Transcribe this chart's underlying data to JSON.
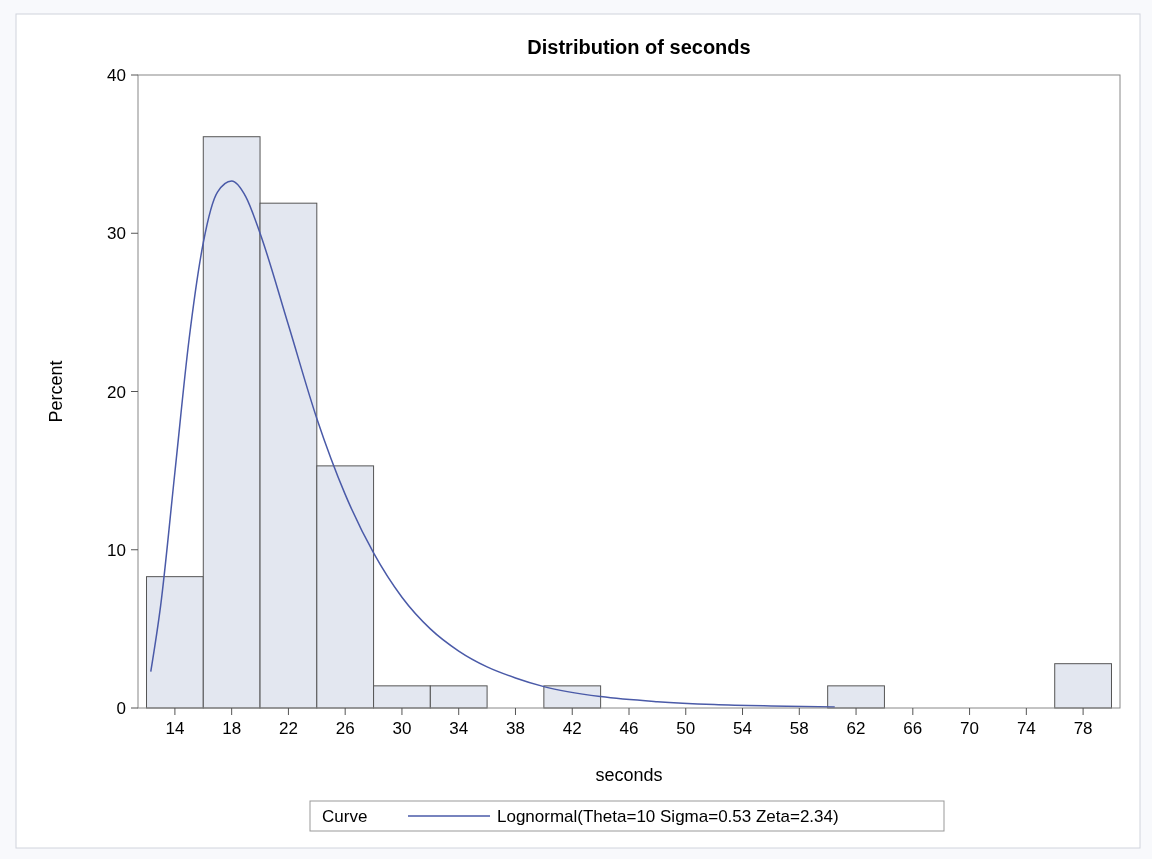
{
  "chart_data": {
    "type": "histogram",
    "title": "Distribution of seconds",
    "xlabel": "seconds",
    "ylabel": "Percent",
    "legend_title": "Curve",
    "legend": "bottom",
    "xlim": [
      11.4,
      80.6
    ],
    "xticks": [
      14,
      18,
      22,
      26,
      30,
      34,
      38,
      42,
      46,
      50,
      54,
      58,
      62,
      66,
      70,
      74,
      78
    ],
    "ylim": [
      0,
      40
    ],
    "yticks": [
      0,
      10,
      20,
      30,
      40
    ],
    "series": [
      {
        "color": "#e3e7f0",
        "bins": [
          12,
          16,
          20,
          24,
          28,
          32,
          36,
          40,
          44,
          48,
          52,
          56,
          60,
          64,
          68,
          72,
          76,
          80
        ],
        "values": [
          8.3,
          36.1,
          31.9,
          15.3,
          1.4,
          1.4,
          0,
          1.4,
          0,
          0,
          0,
          0,
          1.4,
          0,
          0,
          0,
          2.8
        ]
      },
      {
        "type": "line",
        "name": "Lognormal(Theta=10 Sigma=0.53 Zeta=2.34)",
        "color": "#4a5aa8",
        "x": [
          12.3,
          13,
          14,
          15,
          16,
          17,
          18,
          19,
          20,
          22,
          24,
          26,
          28,
          30,
          32,
          34,
          36,
          38,
          40,
          44,
          48,
          52,
          56,
          60.5
        ],
        "values": [
          2.3,
          6.5,
          14.9,
          23.3,
          29.4,
          32.6,
          33.3,
          32.3,
          30.0,
          24.2,
          18.3,
          13.5,
          9.8,
          7.0,
          5.0,
          3.6,
          2.6,
          1.9,
          1.35,
          0.72,
          0.4,
          0.22,
          0.13,
          0.07
        ]
      }
    ]
  }
}
